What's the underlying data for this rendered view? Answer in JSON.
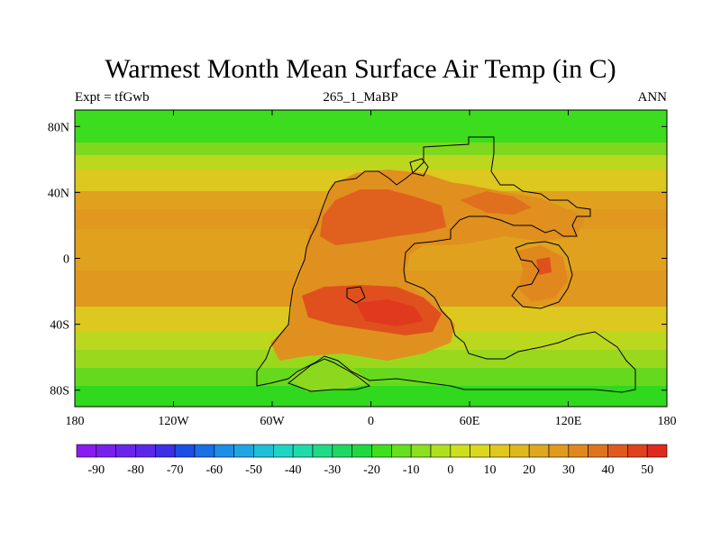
{
  "title": "Warmest Month Mean Surface Air Temp (in C)",
  "subtitle_left": "Expt = tfGwb",
  "subtitle_center": "265_1_MaBP",
  "subtitle_right": "ANN",
  "map": {
    "lon_range": [
      -180,
      180
    ],
    "lat_range": [
      -90,
      90
    ],
    "lat_ticks": [
      {
        "value": 80,
        "label": "80N"
      },
      {
        "value": 40,
        "label": "40N"
      },
      {
        "value": 0,
        "label": "0"
      },
      {
        "value": -40,
        "label": "40S"
      },
      {
        "value": -80,
        "label": "80S"
      }
    ],
    "lon_ticks": [
      {
        "value": -180,
        "label": "180"
      },
      {
        "value": -120,
        "label": "120W"
      },
      {
        "value": -60,
        "label": "60W"
      },
      {
        "value": 0,
        "label": "0"
      },
      {
        "value": 60,
        "label": "60E"
      },
      {
        "value": 120,
        "label": "120E"
      },
      {
        "value": 180,
        "label": "180"
      }
    ]
  },
  "colorbar": {
    "labels": [
      "-90",
      "-80",
      "-70",
      "-60",
      "-50",
      "-40",
      "-30",
      "-20",
      "-10",
      "0",
      "10",
      "20",
      "30",
      "40",
      "50"
    ],
    "colors": [
      "#8a1cf0",
      "#7a20ee",
      "#6b24ec",
      "#5b28ea",
      "#3d2ee8",
      "#1b4fe6",
      "#1b6fe6",
      "#1e8fe6",
      "#1fa6e2",
      "#1ec0d8",
      "#1ed4c4",
      "#1edca8",
      "#1edc86",
      "#1ed864",
      "#1ed840",
      "#3ee01e",
      "#66e01e",
      "#8ce01e",
      "#aee01e",
      "#cce01e",
      "#dcd81e",
      "#e0c81e",
      "#e0b81e",
      "#e0a81e",
      "#e09a1e",
      "#e0881e",
      "#e0741e",
      "#e05a1e",
      "#e0421e",
      "#e02a1e"
    ]
  }
}
